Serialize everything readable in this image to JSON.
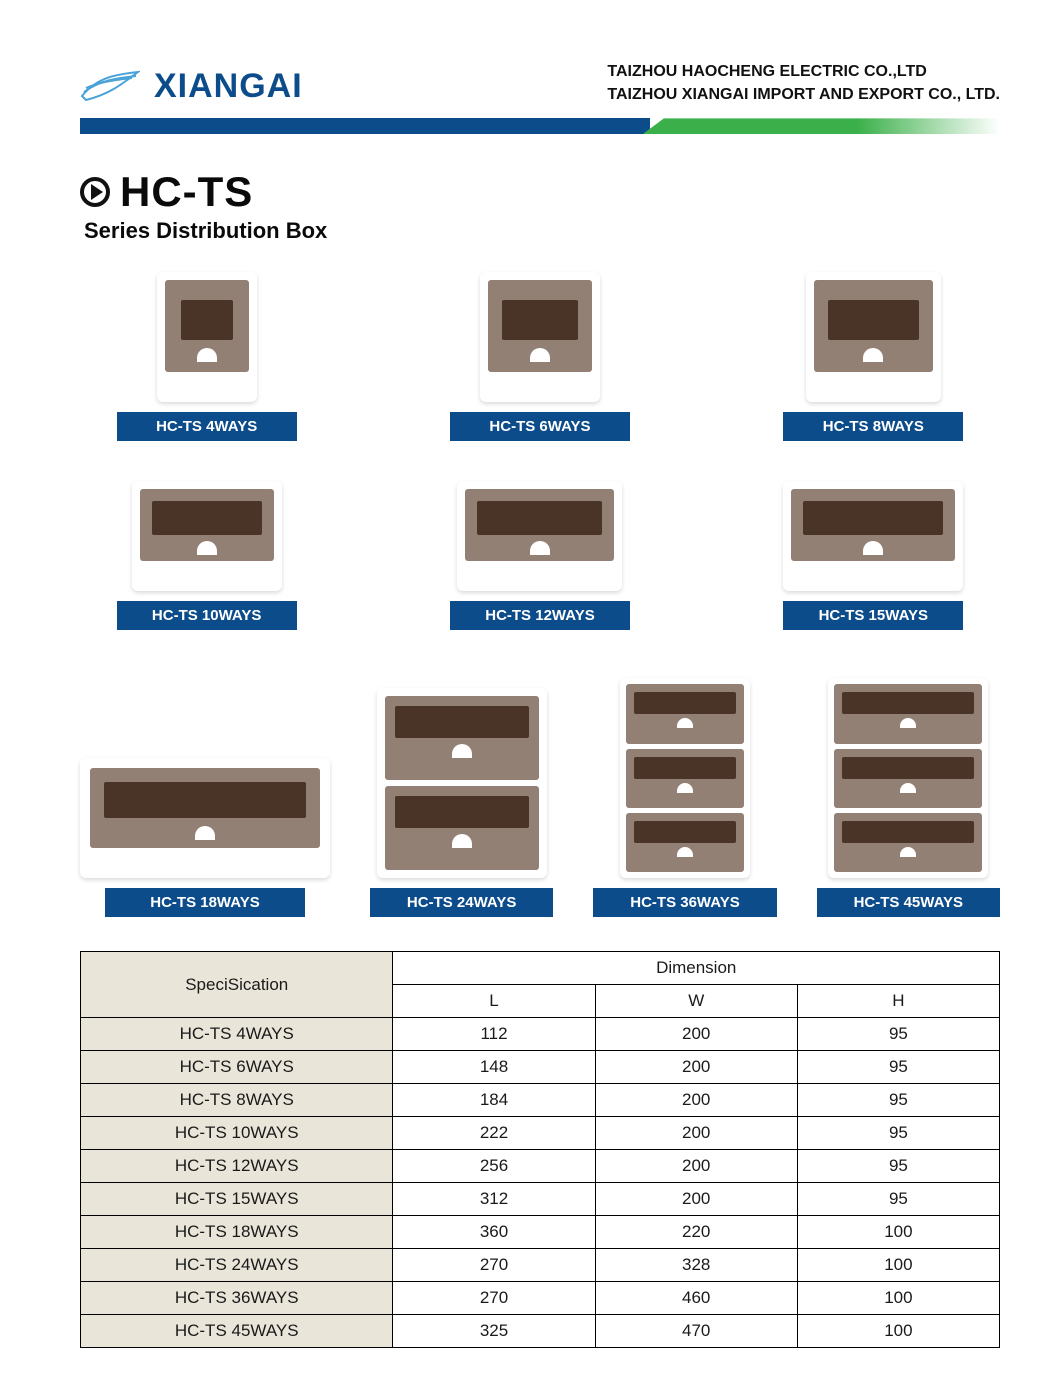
{
  "brand": {
    "name": "XIANGAI",
    "logo_stroke": "#4aa3d8"
  },
  "company": {
    "line1": "TAIZHOU HAOCHENG ELECTRIC CO.,LTD",
    "line2": "TAIZHOU XIANGAI IMPORT AND EXPORT CO., LTD."
  },
  "stripe_colors": {
    "blue": "#0c4c8a",
    "green": "#3bb04a"
  },
  "title": {
    "code": "HC-TS",
    "subtitle": "Series Distribution Box"
  },
  "products_top": [
    {
      "label": "HC-TS  4WAYS"
    },
    {
      "label": "HC-TS  6WAYS"
    },
    {
      "label": "HC-TS  8WAYS"
    },
    {
      "label": "HC-TS  10WAYS"
    },
    {
      "label": "HC-TS  12WAYS"
    },
    {
      "label": "HC-TS  15WAYS"
    }
  ],
  "products_bottom": [
    {
      "label": "HC-TS  18WAYS"
    },
    {
      "label": "HC-TS  24WAYS"
    },
    {
      "label": "HC-TS  36WAYS"
    },
    {
      "label": "HC-TS  45WAYS"
    }
  ],
  "badge_style": {
    "bg": "#0c4c8a",
    "fg": "#ffffff"
  },
  "product_box_style": {
    "body": "#ffffff",
    "panel": "#938074",
    "window": "#4a3428"
  },
  "table": {
    "header_spec": "SpeciSication",
    "header_dim": "Dimension",
    "cols": [
      "L",
      "W",
      "H"
    ],
    "spec_bg": "#eae5d9",
    "rows": [
      {
        "name": "HC-TS  4WAYS",
        "L": "112",
        "W": "200",
        "H": "95"
      },
      {
        "name": "HC-TS  6WAYS",
        "L": "148",
        "W": "200",
        "H": "95"
      },
      {
        "name": "HC-TS  8WAYS",
        "L": "184",
        "W": "200",
        "H": "95"
      },
      {
        "name": "HC-TS  10WAYS",
        "L": "222",
        "W": "200",
        "H": "95"
      },
      {
        "name": "HC-TS  12WAYS",
        "L": "256",
        "W": "200",
        "H": "95"
      },
      {
        "name": "HC-TS  15WAYS",
        "L": "312",
        "W": "200",
        "H": "95"
      },
      {
        "name": "HC-TS  18WAYS",
        "L": "360",
        "W": "220",
        "H": "100"
      },
      {
        "name": "HC-TS  24WAYS",
        "L": "270",
        "W": "328",
        "H": "100"
      },
      {
        "name": "HC-TS  36WAYS",
        "L": "270",
        "W": "460",
        "H": "100"
      },
      {
        "name": "HC-TS  45WAYS",
        "L": "325",
        "W": "470",
        "H": "100"
      }
    ]
  }
}
